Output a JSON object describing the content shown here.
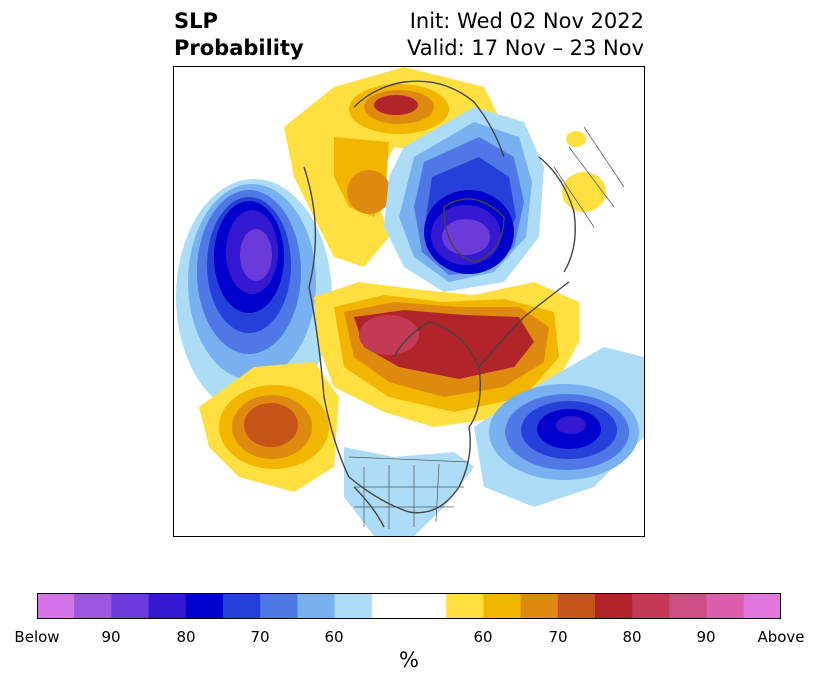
{
  "header": {
    "title_line1": "SLP",
    "title_line2": "Probability",
    "init_text": "Init: Wed 02 Nov 2022",
    "valid_text": "Valid: 17 Nov – 23 Nov"
  },
  "colorbar": {
    "unit": "%",
    "colors": [
      "#d574e8",
      "#9b57de",
      "#6a3bd8",
      "#3519d0",
      "#0000cc",
      "#2440d9",
      "#4f78e6",
      "#78b0f0",
      "#addcf7",
      "#ffffff",
      "#ffffff",
      "#ffe040",
      "#f2b600",
      "#de8a10",
      "#c45418",
      "#b0242a",
      "#c23a54",
      "#cc4e84",
      "#dc5fae",
      "#e376de"
    ],
    "tick_labels": [
      "Below",
      "90",
      "80",
      "70",
      "60",
      "60",
      "70",
      "80",
      "90",
      "Above"
    ]
  },
  "map": {
    "name": "Northern Hemisphere polar stereographic",
    "anomaly_palette": {
      "below_60": "#addcf7",
      "below_70": "#4f78e6",
      "below_80": "#0000cc",
      "below_90": "#6a3bd8",
      "above_60": "#ffe040",
      "above_70": "#de8a10",
      "above_80": "#b0242a",
      "above_90": "#c23a54"
    }
  }
}
